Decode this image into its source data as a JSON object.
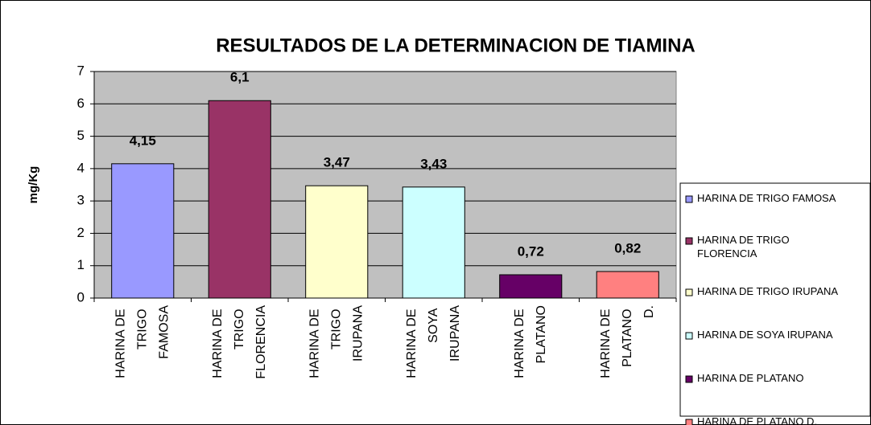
{
  "chart_data": {
    "type": "bar",
    "title": "RESULTADOS DE LA DETERMINACION DE TIAMINA",
    "y_label": "mg/Kg",
    "categories": [
      "HARINA DE TRIGO FAMOSA",
      "HARINA DE TRIGO FLORENCIA",
      "HARINA DE TRIGO IRUPANA",
      "HARINA DE SOYA IRUPANA",
      "HARINA DE PLATANO",
      "HARINA DE PLATANO D."
    ],
    "values": [
      4.15,
      6.1,
      3.47,
      3.43,
      0.72,
      0.82
    ],
    "value_labels": [
      "4,15",
      "6,1",
      "3,47",
      "3,43",
      "0,72",
      "0,82"
    ],
    "colors": [
      "#9999ff",
      "#993366",
      "#ffffcc",
      "#ccffff",
      "#660066",
      "#ff8080"
    ],
    "ylim": [
      0,
      7
    ],
    "yticks": [
      0,
      1,
      2,
      3,
      4,
      5,
      6,
      7
    ],
    "grid": true,
    "legend": "right"
  }
}
